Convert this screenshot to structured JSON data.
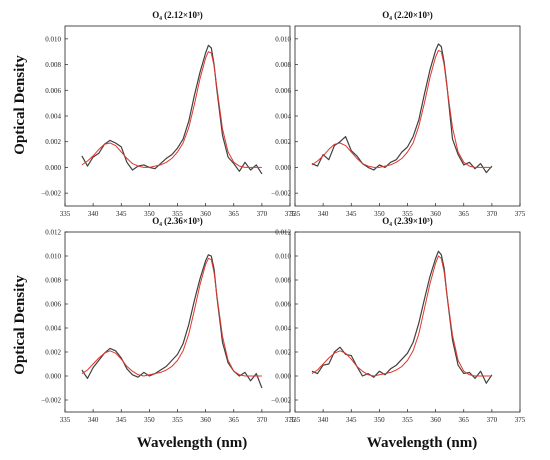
{
  "figure": {
    "ylabel": "Optical Density",
    "xlabel": "Wavelength (nm)"
  },
  "chart_data": [
    {
      "type": "line",
      "title": "O₄ (2.12×10³)",
      "xlim": [
        335,
        375
      ],
      "ylim": [
        -0.003,
        0.011
      ],
      "xticks": [
        "335",
        "340",
        "345",
        "350",
        "355",
        "360",
        "365",
        "370",
        "375"
      ],
      "yticks": [
        "−0.002",
        "0.000",
        "0.002",
        "0.004",
        "0.006",
        "0.008",
        "0.010"
      ],
      "x": [
        338,
        339,
        340,
        341,
        342,
        343,
        344,
        345,
        346,
        347,
        348,
        349,
        350,
        351,
        352,
        353,
        354,
        355,
        356,
        357,
        358,
        359,
        360,
        360.5,
        361,
        361.5,
        362,
        363,
        364,
        365,
        366,
        367,
        368,
        369,
        370
      ],
      "series": [
        {
          "color": "#404040",
          "y": [
            0.0009,
            0.0001,
            0.0008,
            0.0011,
            0.0018,
            0.0021,
            0.0019,
            0.0016,
            0.0004,
            -0.0002,
            0.0001,
            0.0002,
            0.0,
            -0.0001,
            0.0003,
            0.0007,
            0.001,
            0.0015,
            0.0022,
            0.0036,
            0.0056,
            0.0074,
            0.0089,
            0.0095,
            0.0093,
            0.008,
            0.006,
            0.0025,
            0.0008,
            0.0003,
            -0.0003,
            0.0004,
            -0.0002,
            0.0002,
            -0.0005
          ]
        },
        {
          "color": "#e0372c",
          "y": [
            0.0002,
            0.0005,
            0.0009,
            0.0014,
            0.0018,
            0.0019,
            0.0017,
            0.0012,
            0.0007,
            0.0003,
            0.0001,
            0.0,
            0.0,
            0.0001,
            0.0002,
            0.0004,
            0.0007,
            0.0012,
            0.0019,
            0.0031,
            0.0049,
            0.0069,
            0.0085,
            0.009,
            0.0089,
            0.0079,
            0.0062,
            0.003,
            0.0012,
            0.0004,
            0.0001,
            0.0,
            0.0,
            0.0,
            0.0
          ]
        }
      ]
    },
    {
      "type": "line",
      "title": "O₄ (2.20×10³)",
      "xlim": [
        335,
        375
      ],
      "ylim": [
        -0.003,
        0.011
      ],
      "xticks": [
        "335",
        "340",
        "345",
        "350",
        "355",
        "360",
        "365",
        "370",
        "375"
      ],
      "yticks": [
        "−0.002",
        "0.000",
        "0.002",
        "0.004",
        "0.006",
        "0.008",
        "0.010"
      ],
      "x": [
        338,
        339,
        340,
        341,
        342,
        343,
        344,
        345,
        346,
        347,
        348,
        349,
        350,
        351,
        352,
        353,
        354,
        355,
        356,
        357,
        358,
        359,
        360,
        360.5,
        361,
        361.5,
        362,
        363,
        364,
        365,
        366,
        367,
        368,
        369,
        370
      ],
      "series": [
        {
          "color": "#404040",
          "y": [
            0.0003,
            0.0001,
            0.001,
            0.0006,
            0.0017,
            0.002,
            0.0024,
            0.0013,
            0.0009,
            0.0003,
            0.0,
            -0.0002,
            0.0002,
            0.0,
            0.0004,
            0.0006,
            0.0012,
            0.0016,
            0.0024,
            0.0037,
            0.0057,
            0.0076,
            0.0091,
            0.0096,
            0.0094,
            0.0082,
            0.0064,
            0.0022,
            0.001,
            0.0002,
            0.0004,
            -0.0001,
            0.0003,
            -0.0004,
            0.0001
          ]
        },
        {
          "color": "#e0372c",
          "y": [
            0.0002,
            0.0005,
            0.0009,
            0.0014,
            0.0018,
            0.0019,
            0.0017,
            0.0012,
            0.0007,
            0.0003,
            0.0001,
            0.0,
            0.0,
            0.0001,
            0.0002,
            0.0004,
            0.0007,
            0.0012,
            0.0019,
            0.0032,
            0.005,
            0.007,
            0.0086,
            0.0091,
            0.009,
            0.008,
            0.0063,
            0.0031,
            0.0012,
            0.0004,
            0.0001,
            0.0,
            0.0,
            0.0,
            0.0
          ]
        }
      ]
    },
    {
      "type": "line",
      "title": "O₄ (2.36×10³)",
      "xlim": [
        335,
        375
      ],
      "ylim": [
        -0.003,
        0.012
      ],
      "xticks": [
        "335",
        "340",
        "345",
        "350",
        "355",
        "360",
        "365",
        "370",
        "375"
      ],
      "yticks": [
        "−0.002",
        "0.000",
        "0.002",
        "0.004",
        "0.006",
        "0.008",
        "0.010",
        "0.012"
      ],
      "x": [
        338,
        339,
        340,
        341,
        342,
        343,
        344,
        345,
        346,
        347,
        348,
        349,
        350,
        351,
        352,
        353,
        354,
        355,
        356,
        357,
        358,
        359,
        360,
        360.5,
        361,
        361.5,
        362,
        363,
        364,
        365,
        366,
        367,
        368,
        369,
        370
      ],
      "series": [
        {
          "color": "#404040",
          "y": [
            0.0005,
            -0.0002,
            0.0007,
            0.0013,
            0.0019,
            0.0023,
            0.0021,
            0.0015,
            0.0006,
            0.0001,
            -0.0001,
            0.0003,
            0.0,
            0.0002,
            0.0005,
            0.0008,
            0.0013,
            0.0018,
            0.0027,
            0.0043,
            0.0063,
            0.0081,
            0.0096,
            0.0101,
            0.01,
            0.0089,
            0.0066,
            0.0028,
            0.0011,
            0.0004,
            0.0,
            0.0003,
            -0.0004,
            0.0002,
            -0.001
          ]
        },
        {
          "color": "#e0372c",
          "y": [
            0.0002,
            0.0005,
            0.001,
            0.0015,
            0.0019,
            0.0021,
            0.0019,
            0.0014,
            0.0008,
            0.0004,
            0.0001,
            0.0,
            0.0001,
            0.0002,
            0.0003,
            0.0005,
            0.0008,
            0.0013,
            0.0021,
            0.0035,
            0.0055,
            0.0076,
            0.0093,
            0.0098,
            0.0097,
            0.0086,
            0.0067,
            0.0033,
            0.0013,
            0.0004,
            0.0001,
            0.0,
            0.0,
            0.0,
            0.0
          ]
        }
      ]
    },
    {
      "type": "line",
      "title": "O₄ (2.39×10³)",
      "xlim": [
        335,
        375
      ],
      "ylim": [
        -0.003,
        0.012
      ],
      "xticks": [
        "335",
        "340",
        "345",
        "350",
        "355",
        "360",
        "365",
        "370",
        "375"
      ],
      "yticks": [
        "−0.002",
        "0.000",
        "0.002",
        "0.004",
        "0.006",
        "0.008",
        "0.010",
        "0.012"
      ],
      "x": [
        338,
        339,
        340,
        341,
        342,
        343,
        344,
        345,
        346,
        347,
        348,
        349,
        350,
        351,
        352,
        353,
        354,
        355,
        356,
        357,
        358,
        359,
        360,
        360.5,
        361,
        361.5,
        362,
        363,
        364,
        365,
        366,
        367,
        368,
        369,
        370
      ],
      "series": [
        {
          "color": "#404040",
          "y": [
            0.0004,
            0.0002,
            0.0009,
            0.001,
            0.002,
            0.0024,
            0.0018,
            0.0017,
            0.0008,
            0.0,
            0.0002,
            -0.0001,
            0.0004,
            0.0001,
            0.0006,
            0.0009,
            0.0014,
            0.0019,
            0.0028,
            0.0044,
            0.0064,
            0.0083,
            0.0098,
            0.0104,
            0.0101,
            0.009,
            0.0068,
            0.003,
            0.0009,
            0.0002,
            0.0003,
            -0.0002,
            0.0004,
            -0.0006,
            0.0001
          ]
        },
        {
          "color": "#e0372c",
          "y": [
            0.0002,
            0.0005,
            0.001,
            0.0015,
            0.0019,
            0.0021,
            0.0019,
            0.0014,
            0.0008,
            0.0004,
            0.0001,
            0.0,
            0.0001,
            0.0002,
            0.0003,
            0.0005,
            0.0008,
            0.0013,
            0.0021,
            0.0035,
            0.0056,
            0.0077,
            0.0094,
            0.01,
            0.0098,
            0.0087,
            0.0068,
            0.0034,
            0.0013,
            0.0004,
            0.0001,
            0.0,
            0.0,
            0.0,
            0.0
          ]
        }
      ]
    }
  ]
}
